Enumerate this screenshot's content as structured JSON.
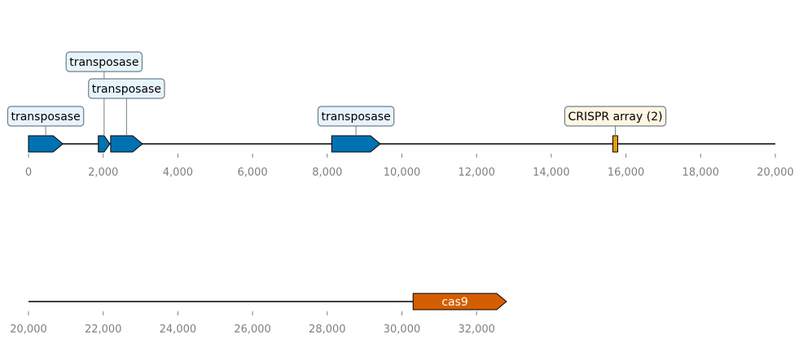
{
  "chart_data": {
    "type": "genomic-map",
    "colors": {
      "transposase": "#0072b2",
      "cas9": "#d55e00",
      "crispr": "#e69f00",
      "label_box_blue": "#e8f4fb",
      "label_box_cream": "#fff6e3",
      "label_box_border": "#6e7f8c",
      "axis_text": "#808080"
    },
    "tracks": [
      {
        "name": "track-1",
        "xlim": [
          0,
          20000
        ],
        "ticks": [
          0,
          2000,
          4000,
          6000,
          8000,
          10000,
          12000,
          14000,
          16000,
          18000,
          20000
        ],
        "tick_labels": [
          "0",
          "2,000",
          "4,000",
          "6,000",
          "8,000",
          "10,000",
          "12,000",
          "14,000",
          "16,000",
          "18,000",
          "20,000"
        ],
        "features": [
          {
            "id": "transposase-1",
            "label": "transposase",
            "start": 0,
            "end": 920,
            "strand": 1,
            "kind": "gene",
            "color": "transposase",
            "label_level": 1,
            "label_style": "box-blue"
          },
          {
            "id": "transposase-2",
            "label": "transposase",
            "start": 1870,
            "end": 2180,
            "strand": 1,
            "kind": "gene-small",
            "color": "transposase",
            "label_level": 3,
            "label_style": "box-blue"
          },
          {
            "id": "transposase-3",
            "label": "transposase",
            "start": 2200,
            "end": 3050,
            "strand": 1,
            "kind": "gene",
            "color": "transposase",
            "label_level": 2,
            "label_style": "box-blue"
          },
          {
            "id": "transposase-4",
            "label": "transposase",
            "start": 8120,
            "end": 9420,
            "strand": 1,
            "kind": "gene",
            "color": "transposase",
            "label_level": 1,
            "label_style": "box-blue"
          },
          {
            "id": "crispr-array",
            "label": "CRISPR array (2)",
            "start": 15650,
            "end": 15780,
            "strand": 0,
            "kind": "array",
            "color": "crispr",
            "label_level": 1,
            "label_style": "box-cream"
          }
        ]
      },
      {
        "name": "track-2",
        "xlim": [
          20000,
          32800
        ],
        "ticks": [
          20000,
          22000,
          24000,
          26000,
          28000,
          30000,
          32000
        ],
        "tick_labels": [
          "20,000",
          "22,000",
          "24,000",
          "26,000",
          "28,000",
          "30,000",
          "32,000"
        ],
        "features": [
          {
            "id": "cas9",
            "label": "cas9",
            "start": 30300,
            "end": 32800,
            "strand": 1,
            "kind": "gene",
            "color": "cas9",
            "label_level": 0,
            "label_style": "inline"
          }
        ]
      }
    ]
  }
}
